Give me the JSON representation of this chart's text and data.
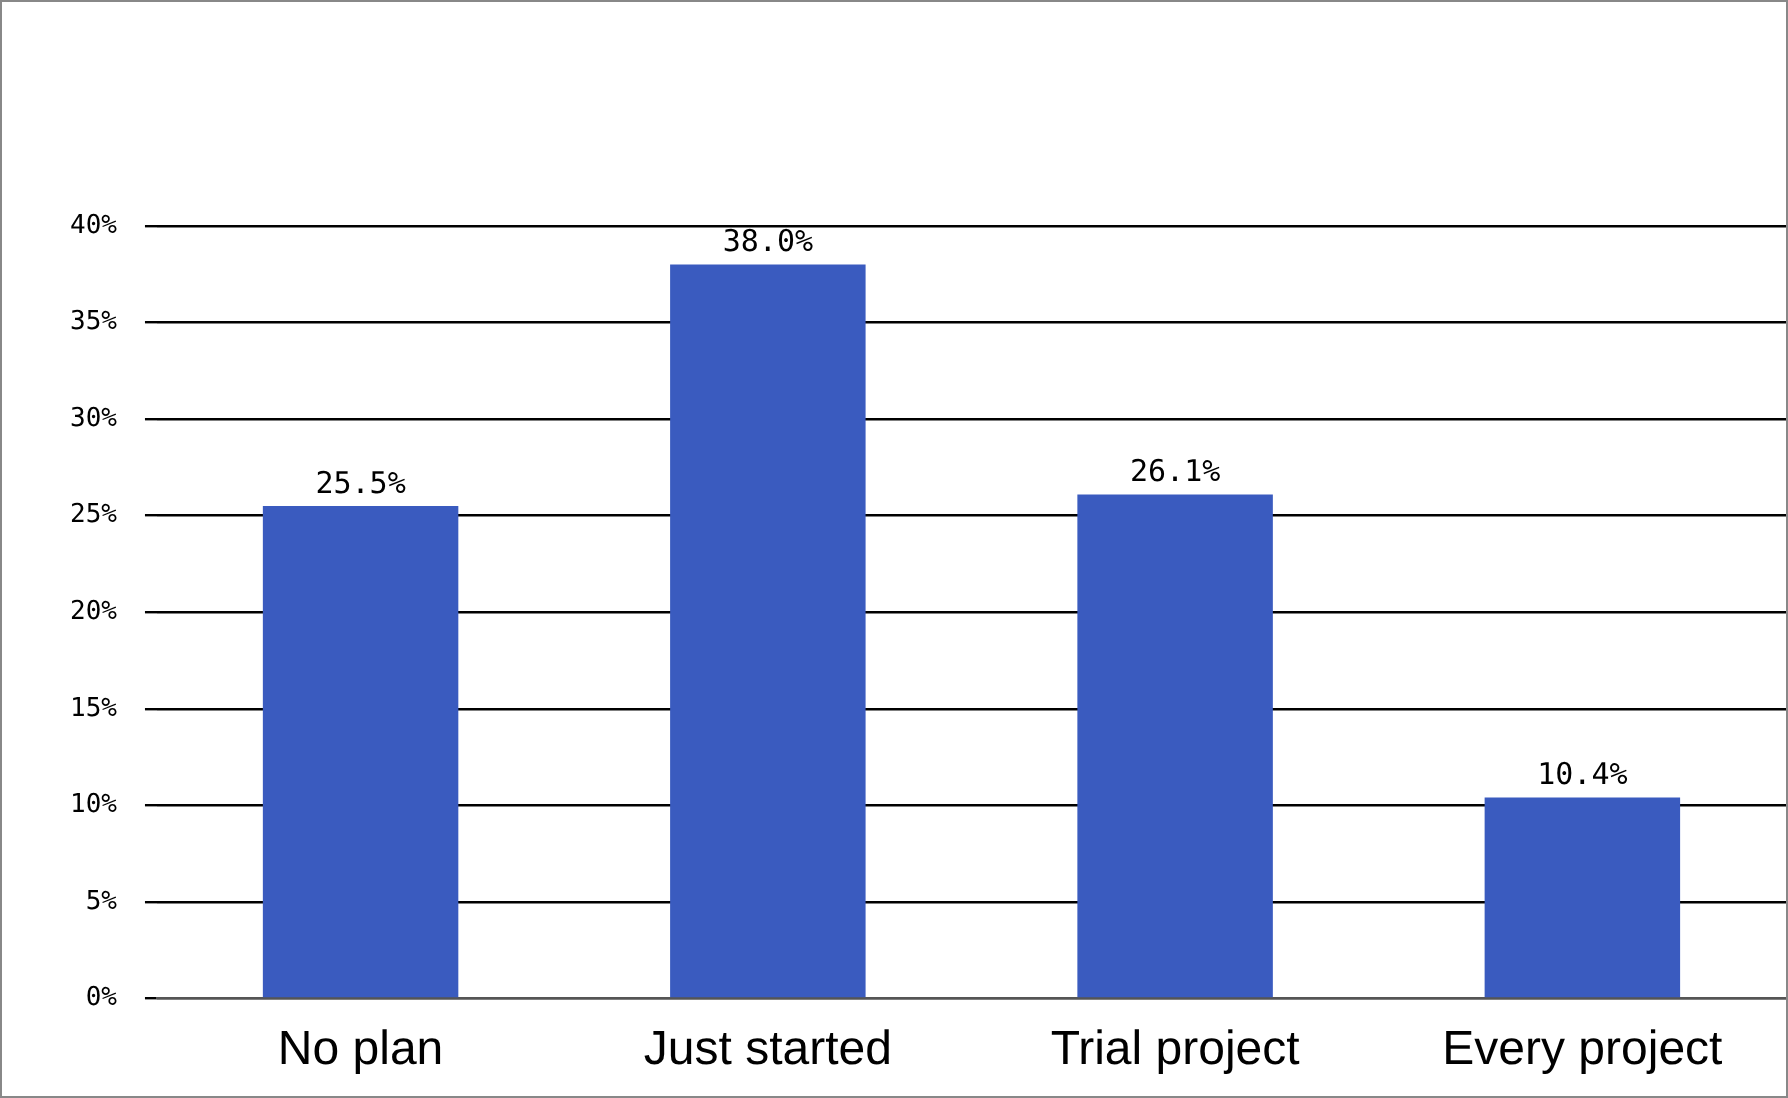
{
  "chart_data": {
    "type": "bar",
    "categories": [
      "No plan",
      "Just started",
      "Trial project",
      "Every project"
    ],
    "values": [
      25.5,
      38.0,
      26.1,
      10.4
    ],
    "color": "#3a5bbf",
    "value_labels": [
      "25.5%",
      "38.0%",
      "26.1%",
      "10.4%"
    ],
    "ylim": [
      0,
      40
    ],
    "yticks": [
      {
        "value": 0,
        "label": "0%"
      },
      {
        "value": 5,
        "label": "5%"
      },
      {
        "value": 10,
        "label": "10%"
      },
      {
        "value": 15,
        "label": "15%"
      },
      {
        "value": 20,
        "label": "20%"
      },
      {
        "value": 25,
        "label": "25%"
      },
      {
        "value": 30,
        "label": "30%"
      },
      {
        "value": 35,
        "label": "35%"
      },
      {
        "value": 40,
        "label": "40%"
      }
    ],
    "grid": "y",
    "legend": false
  }
}
